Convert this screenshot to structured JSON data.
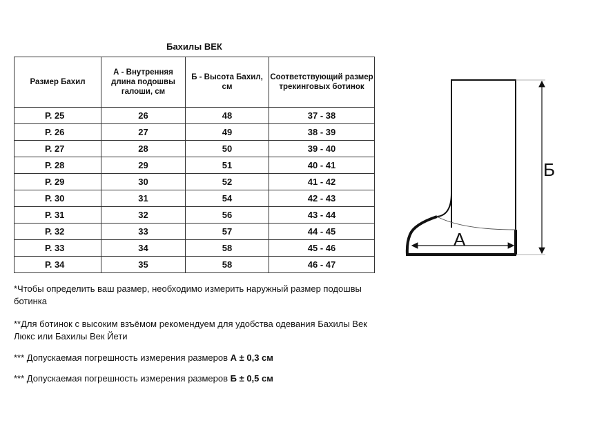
{
  "title": "Бахилы ВЕК",
  "table": {
    "headers": [
      "Размер Бахил",
      "А - Внутренняя длина подошвы галоши, см",
      "Б - Высота Бахил, см",
      "Соответствующий размер трекинговых ботинок"
    ],
    "rows": [
      [
        "Р. 25",
        "26",
        "48",
        "37 - 38"
      ],
      [
        "Р. 26",
        "27",
        "49",
        "38 - 39"
      ],
      [
        "Р. 27",
        "28",
        "50",
        "39 - 40"
      ],
      [
        "Р. 28",
        "29",
        "51",
        "40 - 41"
      ],
      [
        "Р. 29",
        "30",
        "52",
        "41 - 42"
      ],
      [
        "Р. 30",
        "31",
        "54",
        "42 - 43"
      ],
      [
        "Р. 31",
        "32",
        "56",
        "43 - 44"
      ],
      [
        "Р. 32",
        "33",
        "57",
        "44 - 45"
      ],
      [
        "Р. 33",
        "34",
        "58",
        "45 - 46"
      ],
      [
        "Р. 34",
        "35",
        "58",
        "46 - 47"
      ]
    ]
  },
  "notes": {
    "n1": "*Чтобы определить ваш размер, необходимо измерить наружный размер подошвы ботинка",
    "n2": "**Для ботинок с высоким взъёмом рекомендуем для удобства одевания Бахилы Век Люкс или Бахилы Век Йети",
    "n3_text": "*** Допускаемая погрешность измерения размеров ",
    "n3_bold": "А ± 0,3 см",
    "n4_text": "*** Допускаемая погрешность измерения размеров ",
    "n4_bold": "Б ± 0,5 см"
  },
  "diagram": {
    "label_a": "А",
    "label_b": "Б"
  }
}
